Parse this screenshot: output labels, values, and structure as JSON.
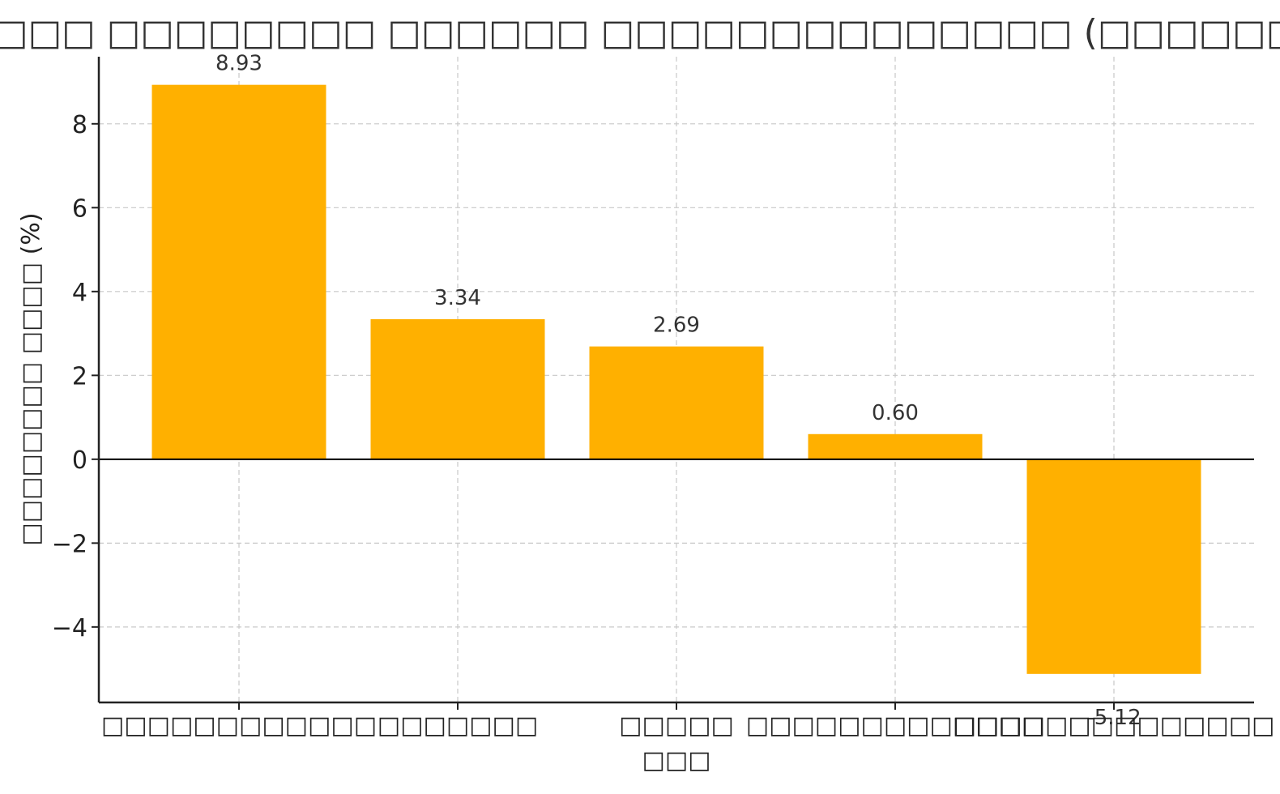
{
  "chart_data": {
    "type": "bar",
    "title": "□□□□□□□ □□□□□□□□ □□□□□□ □□□□□□□□□□□□□□ (□□□□□□ □□□□□)",
    "xlabel": "□□□",
    "ylabel": "□□□□□□□□ □□□□ (%)",
    "categories": [
      "□□□□□□□□□□□□",
      "□□□□□□□",
      "□□□□□",
      "□□□□□□□□□□□□□",
      "□□□□□□□□□□□□□□"
    ],
    "values": [
      8.93,
      3.34,
      2.69,
      0.6,
      -5.12
    ],
    "value_labels": [
      "8.93",
      "3.34",
      "2.69",
      "0.60",
      "-5.12"
    ],
    "yticks": [
      -4,
      -2,
      0,
      2,
      4,
      6,
      8
    ],
    "ytick_labels": [
      "−4",
      "−2",
      "0",
      "2",
      "4",
      "6",
      "8"
    ],
    "ylim": [
      -5.8,
      9.6
    ],
    "grid": true,
    "bar_color": "#FFB000"
  }
}
